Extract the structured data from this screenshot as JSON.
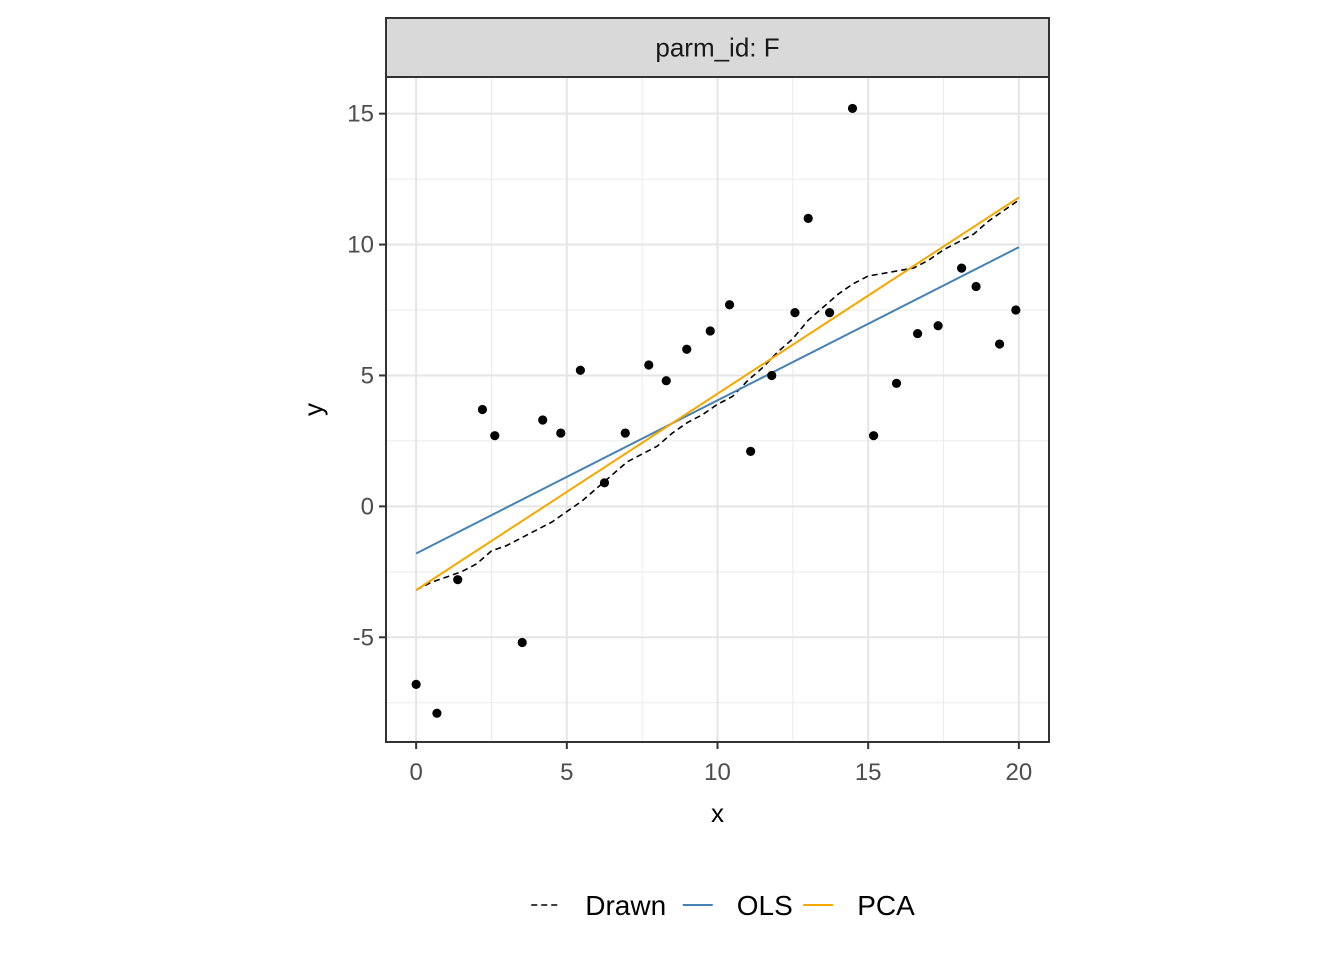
{
  "chart_data": {
    "type": "scatter",
    "facet_label": "parm_id: F",
    "xlabel": "x",
    "ylabel": "y",
    "xlim": [
      -1,
      21
    ],
    "ylim": [
      -9,
      16.4
    ],
    "x_ticks": [
      0,
      5,
      10,
      15,
      20
    ],
    "y_ticks": [
      -5,
      0,
      5,
      10,
      15
    ],
    "grid": true,
    "legend_position": "bottom",
    "points": {
      "x": [
        0.0,
        0.69,
        1.38,
        2.2,
        2.61,
        3.52,
        4.2,
        4.8,
        5.45,
        6.25,
        6.94,
        7.72,
        8.3,
        8.98,
        9.76,
        10.4,
        11.1,
        11.8,
        12.57,
        13.01,
        13.72,
        14.48,
        15.18,
        15.94,
        16.64,
        17.32,
        18.1,
        18.58,
        19.36,
        19.9
      ],
      "y": [
        -6.8,
        -7.9,
        -2.8,
        3.7,
        2.7,
        -5.2,
        3.3,
        2.8,
        5.2,
        0.9,
        2.8,
        5.4,
        4.8,
        6.0,
        6.7,
        7.7,
        2.1,
        5.0,
        7.4,
        11.0,
        7.4,
        15.2,
        2.7,
        4.7,
        6.6,
        6.9,
        9.1,
        8.4,
        6.2,
        7.5
      ]
    },
    "series": [
      {
        "name": "Drawn",
        "color": "#000000",
        "dash": "dashed",
        "x": [
          0.0,
          0.5,
          1.0,
          1.5,
          2.0,
          2.5,
          3.0,
          3.5,
          4.0,
          4.5,
          5.0,
          5.5,
          6.0,
          6.5,
          7.0,
          7.5,
          8.0,
          8.5,
          9.0,
          9.5,
          10.0,
          10.5,
          11.0,
          11.5,
          12.0,
          12.5,
          13.0,
          13.5,
          14.0,
          14.5,
          15.0,
          15.5,
          16.0,
          16.5,
          17.0,
          17.5,
          18.0,
          18.5,
          19.0,
          19.5,
          20.0
        ],
        "y": [
          -3.2,
          -2.9,
          -2.7,
          -2.5,
          -2.2,
          -1.7,
          -1.5,
          -1.2,
          -0.9,
          -0.6,
          -0.2,
          0.2,
          0.7,
          1.2,
          1.7,
          2.0,
          2.3,
          2.8,
          3.2,
          3.5,
          3.9,
          4.2,
          4.8,
          5.3,
          5.9,
          6.4,
          7.1,
          7.6,
          8.1,
          8.5,
          8.8,
          8.9,
          9.0,
          9.1,
          9.4,
          9.8,
          10.1,
          10.4,
          10.9,
          11.3,
          11.7
        ]
      },
      {
        "name": "OLS",
        "color": "#4682b4",
        "dash": "solid",
        "x": [
          0,
          20
        ],
        "y": [
          -1.8,
          9.9
        ]
      },
      {
        "name": "PCA",
        "color": "#f5a800",
        "dash": "solid",
        "x": [
          0,
          20
        ],
        "y": [
          -3.2,
          11.8
        ]
      }
    ]
  }
}
